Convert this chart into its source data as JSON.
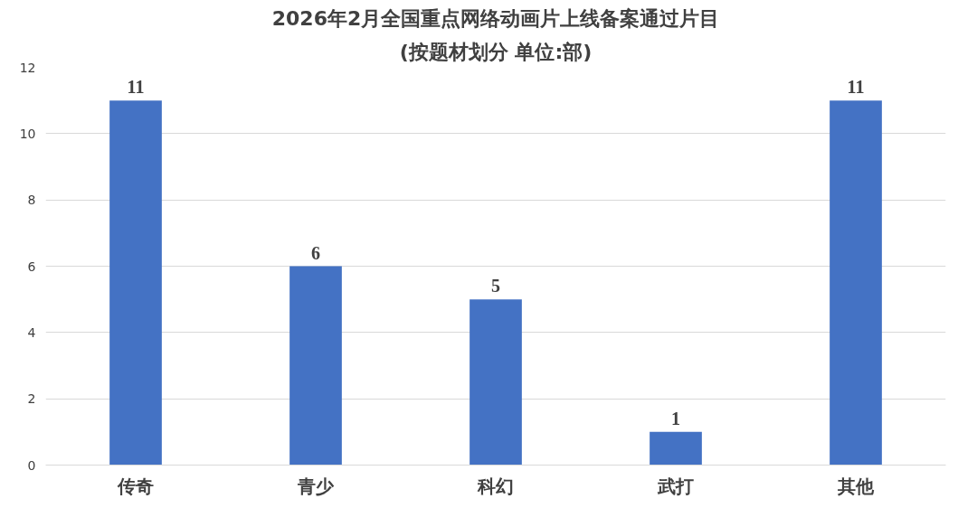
{
  "chart_data": {
    "type": "bar",
    "title": "2026年2月全国重点网络动画片上线备案通过片目",
    "subtitle": "(按题材划分 单位:部)",
    "categories": [
      "传奇",
      "青少",
      "科幻",
      "武打",
      "其他"
    ],
    "values": [
      11,
      6,
      5,
      1,
      11
    ],
    "color": "#4472c4",
    "ylim": [
      0,
      12
    ],
    "yticks": [
      0,
      2,
      4,
      6,
      8,
      10,
      12
    ],
    "grid": "y",
    "data_labels": true
  }
}
